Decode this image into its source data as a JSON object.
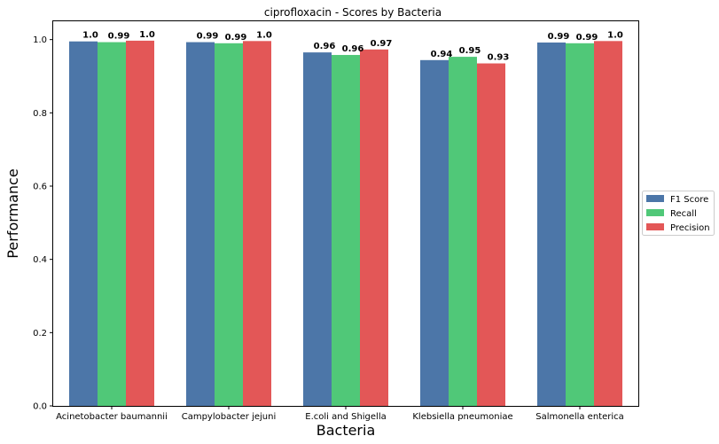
{
  "chart_data": {
    "type": "bar",
    "title": "ciprofloxacin - Scores by Bacteria",
    "xlabel": "Bacteria",
    "ylabel": "Performance",
    "ylim": [
      0,
      1.05
    ],
    "yticks": [
      "0.0",
      "0.2",
      "0.4",
      "0.6",
      "0.8",
      "1.0"
    ],
    "grid": false,
    "legend_position": "right",
    "categories": [
      "Acinetobacter baumannii",
      "Campylobacter jejuni",
      "E.coli and Shigella",
      "Klebsiella pneumoniae",
      "Salmonella enterica"
    ],
    "series": [
      {
        "name": "F1 Score",
        "color": "#4c76a8",
        "values": [
          0.995,
          0.993,
          0.965,
          0.944,
          0.992
        ],
        "labels": [
          "1.0",
          "0.99",
          "0.96",
          "0.94",
          "0.99"
        ]
      },
      {
        "name": "Recall",
        "color": "#50c878",
        "values": [
          0.993,
          0.99,
          0.958,
          0.953,
          0.99
        ],
        "labels": [
          "0.99",
          "0.99",
          "0.96",
          "0.95",
          "0.99"
        ]
      },
      {
        "name": "Precision",
        "color": "#e35757",
        "values": [
          0.997,
          0.996,
          0.973,
          0.935,
          0.996
        ],
        "labels": [
          "1.0",
          "1.0",
          "0.97",
          "0.93",
          "1.0"
        ]
      }
    ]
  }
}
